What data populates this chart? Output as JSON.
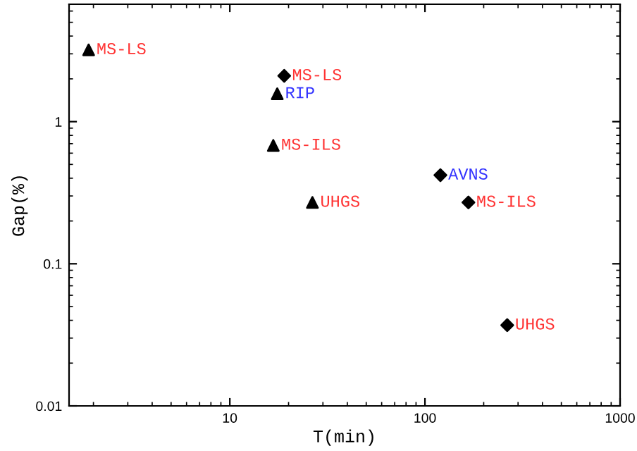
{
  "chart_data": {
    "type": "scatter",
    "xlabel": "T(min)",
    "ylabel": "Gap(%)",
    "log": "xy",
    "xlim": [
      1.5,
      1000
    ],
    "ylim": [
      0.01,
      6.7
    ],
    "xticks": [
      10,
      100,
      1000
    ],
    "yticks": [
      0.01,
      0.1,
      1
    ],
    "grid": false,
    "legend": false,
    "series": [
      {
        "marker": "triangle",
        "color": "#000000",
        "x": [
          1.89,
          17.5,
          16.7,
          26.5
        ],
        "values": [
          3.2,
          1.57,
          0.68,
          0.27
        ]
      },
      {
        "marker": "diamond",
        "color": "#000000",
        "x": [
          19.0,
          120,
          167,
          264
        ],
        "values": [
          2.1,
          0.42,
          0.27,
          0.037
        ]
      }
    ],
    "annotations": [
      {
        "text": "MS-LS",
        "x": 1.89,
        "y": 3.2
      },
      {
        "text": "RIP",
        "x": 17.5,
        "y": 1.57
      },
      {
        "text": "MS-ILS",
        "x": 16.7,
        "y": 0.68
      },
      {
        "text": "UHGS",
        "x": 26.5,
        "y": 0.27
      },
      {
        "text": "MS-LS",
        "x": 19.0,
        "y": 2.1
      },
      {
        "text": "AVNS",
        "x": 120,
        "y": 0.42
      },
      {
        "text": "MS-ILS",
        "x": 167,
        "y": 0.27
      },
      {
        "text": "UHGS",
        "x": 264,
        "y": 0.037
      }
    ]
  }
}
